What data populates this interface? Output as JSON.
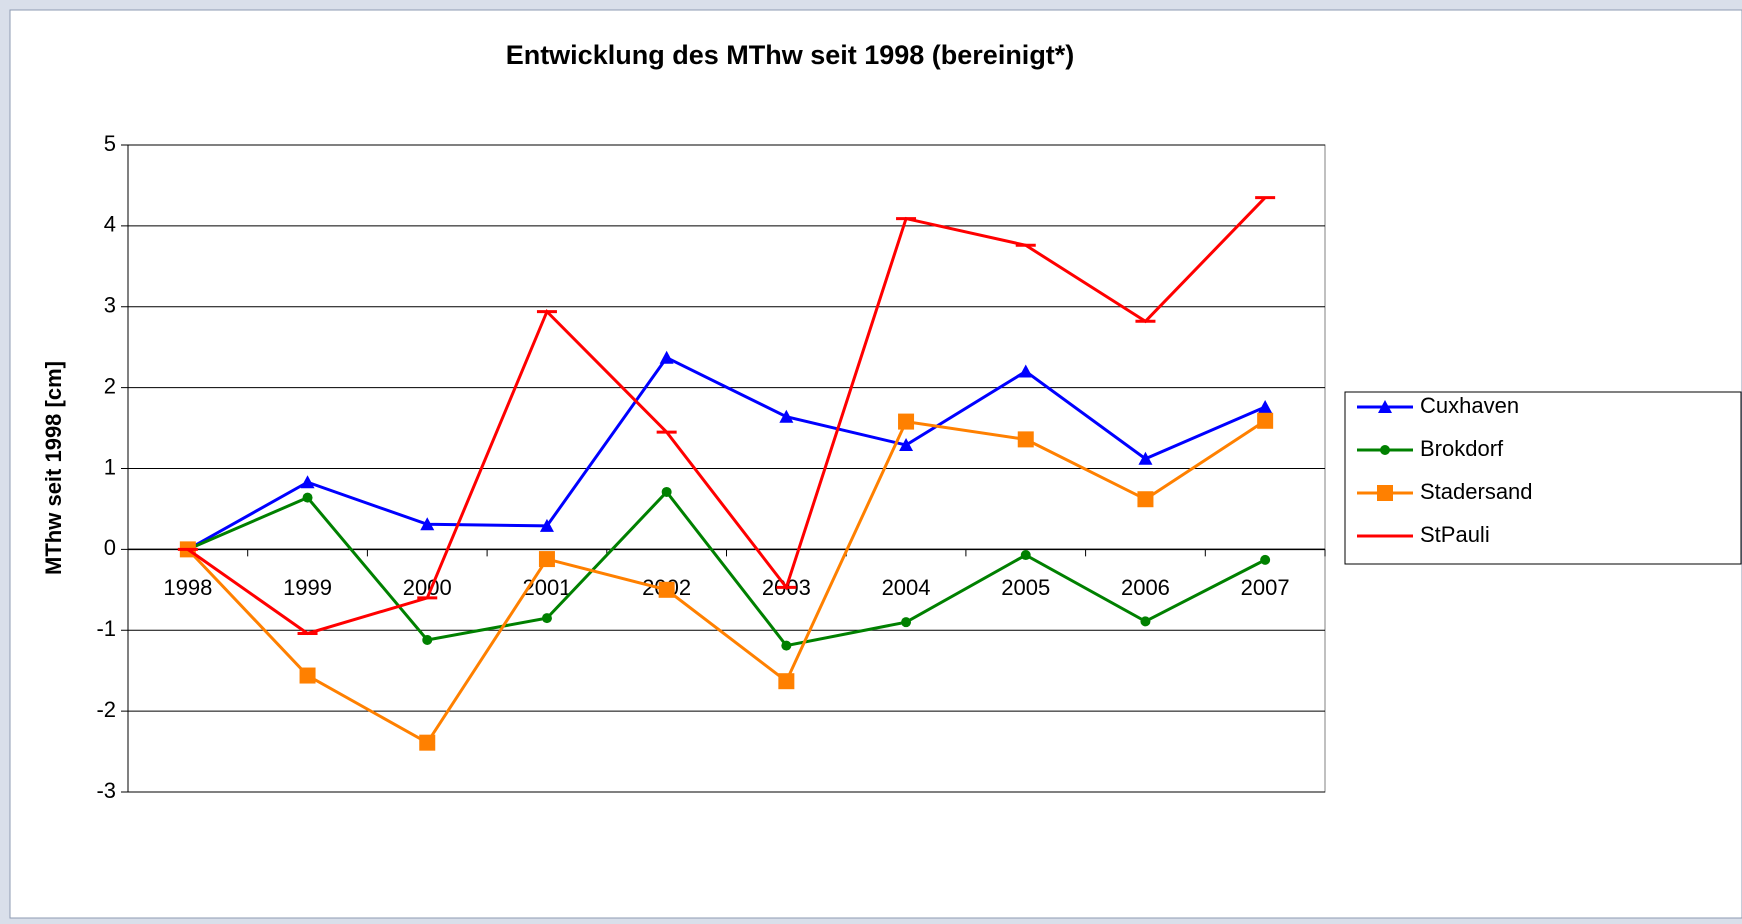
{
  "chart_data": {
    "type": "line",
    "title": "Entwicklung des MThw seit 1998 (bereinigt*)",
    "y_label": "MThw seit 1998 [cm]",
    "categories": [
      "1998",
      "1999",
      "2000",
      "2001",
      "2002",
      "2003",
      "2004",
      "2005",
      "2006",
      "2007"
    ],
    "series": [
      {
        "name": "Cuxhaven",
        "color": "#0000ff",
        "marker": "triangle",
        "values": [
          0,
          0.83,
          0.31,
          0.29,
          2.37,
          1.64,
          1.29,
          2.2,
          1.12,
          1.76
        ]
      },
      {
        "name": "Brokdorf",
        "color": "#008000",
        "marker": "circle",
        "values": [
          0,
          0.64,
          -1.12,
          -0.85,
          0.71,
          -1.19,
          -0.9,
          -0.07,
          -0.89,
          -0.13
        ]
      },
      {
        "name": "Stadersand",
        "color": "#ff8000",
        "marker": "square",
        "values": [
          0,
          -1.56,
          -2.39,
          -0.12,
          -0.5,
          -1.63,
          1.58,
          1.36,
          0.62,
          1.59
        ]
      },
      {
        "name": "StPauli",
        "color": "#ff0000",
        "marker": "dash",
        "values": [
          0,
          -1.04,
          -0.6,
          2.94,
          1.45,
          -0.47,
          4.09,
          3.76,
          2.82,
          4.35
        ]
      }
    ],
    "ylim": [
      -3,
      5
    ],
    "yticks": [
      -3,
      -2,
      -1,
      0,
      1,
      2,
      3,
      4,
      5
    ],
    "grid": true,
    "legend": "right"
  }
}
